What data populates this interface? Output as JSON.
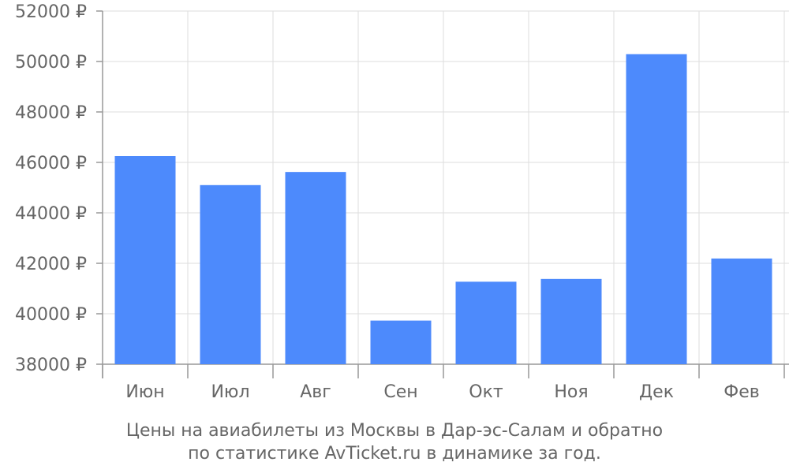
{
  "chart_data": {
    "type": "bar",
    "categories": [
      "Июн",
      "Июл",
      "Авг",
      "Сен",
      "Окт",
      "Ноя",
      "Дек",
      "Фев"
    ],
    "values": [
      46250,
      45100,
      45620,
      39730,
      41270,
      41380,
      50290,
      42190
    ],
    "ylim": [
      38000,
      52000
    ],
    "yticks": [
      38000,
      40000,
      42000,
      44000,
      46000,
      48000,
      50000,
      52000
    ],
    "ytick_suffix": " ₽",
    "grid": true,
    "bar_color": "#4d8afc",
    "grid_color": "#dddddd",
    "axis_color": "#999999",
    "text_color": "#666666"
  },
  "caption": {
    "line1": "Цены на авиабилеты из Москвы в Дар-эс-Салам и обратно",
    "line2": "по статистике AvTicket.ru в динамике за год."
  }
}
